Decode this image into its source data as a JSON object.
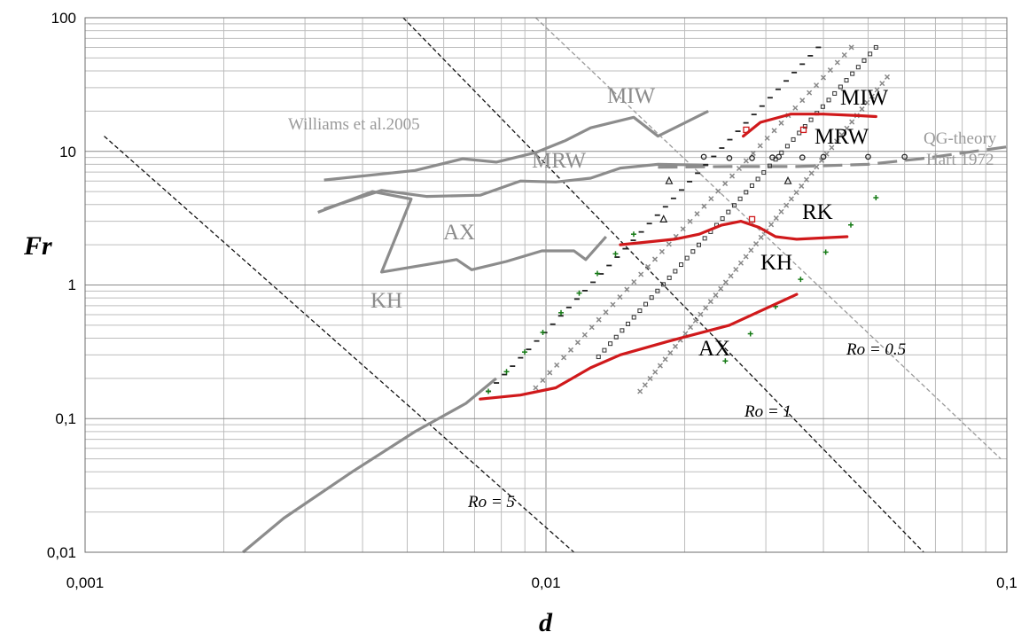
{
  "chart_data": {
    "type": "scatter",
    "xlabel": "d",
    "ylabel": "Fr",
    "xscale": "log",
    "yscale": "log",
    "xlim": [
      0.001,
      0.1
    ],
    "ylim": [
      0.01,
      100
    ],
    "grid": true,
    "x_ticks": [
      "0,001",
      "0,01",
      "0,1"
    ],
    "y_ticks": [
      "0,01",
      "0,1",
      "1",
      "10",
      "100"
    ],
    "rossby_lines": [
      {
        "label": "Ro = 5",
        "points": [
          [
            0.0011,
            13
          ],
          [
            0.0115,
            0.01
          ]
        ]
      },
      {
        "label": "Ro = 1",
        "points": [
          [
            0.0049,
            100
          ],
          [
            0.066,
            0.01
          ]
        ]
      },
      {
        "label": "Ro = 0.5",
        "points": [
          [
            0.0095,
            100
          ],
          [
            0.097,
            0.05
          ]
        ]
      }
    ],
    "williams_boundaries": [
      {
        "points": [
          [
            0.0033,
            6.1
          ],
          [
            0.0052,
            7.2
          ],
          [
            0.0066,
            8.8
          ],
          [
            0.0078,
            8.3
          ],
          [
            0.0095,
            9.8
          ],
          [
            0.011,
            12
          ],
          [
            0.0125,
            15
          ],
          [
            0.0155,
            18
          ],
          [
            0.0175,
            13
          ],
          [
            0.0225,
            20
          ]
        ]
      },
      {
        "points": [
          [
            0.0033,
            3.7
          ],
          [
            0.0044,
            5.1
          ],
          [
            0.0055,
            4.6
          ],
          [
            0.0072,
            4.7
          ],
          [
            0.0088,
            6.0
          ],
          [
            0.0105,
            5.9
          ],
          [
            0.0125,
            6.3
          ],
          [
            0.0145,
            7.5
          ],
          [
            0.0175,
            8.0
          ],
          [
            0.0225,
            7.9
          ]
        ]
      },
      {
        "points": [
          [
            0.0032,
            3.5
          ],
          [
            0.0042,
            5.0
          ],
          [
            0.0051,
            4.4
          ],
          [
            0.0044,
            1.25
          ],
          [
            0.0064,
            1.55
          ],
          [
            0.0069,
            1.3
          ],
          [
            0.0082,
            1.5
          ],
          [
            0.0098,
            1.8
          ],
          [
            0.0115,
            1.8
          ],
          [
            0.0122,
            1.55
          ],
          [
            0.0135,
            2.3
          ]
        ]
      },
      {
        "points": [
          [
            0.0022,
            0.01
          ],
          [
            0.0027,
            0.018
          ],
          [
            0.0038,
            0.04
          ],
          [
            0.0052,
            0.08
          ],
          [
            0.0067,
            0.13
          ],
          [
            0.0078,
            0.2
          ]
        ]
      }
    ],
    "qg_theory_line": {
      "points": [
        [
          0.0175,
          7.6
        ],
        [
          0.025,
          7.7
        ],
        [
          0.035,
          7.7
        ],
        [
          0.05,
          8.0
        ],
        [
          0.065,
          8.8
        ],
        [
          0.1,
          10.8
        ]
      ]
    },
    "present_boundaries": [
      {
        "points": [
          [
            0.0268,
            13
          ],
          [
            0.0292,
            16.5
          ],
          [
            0.034,
            19
          ],
          [
            0.04,
            19
          ],
          [
            0.048,
            18.5
          ],
          [
            0.052,
            18.2
          ]
        ]
      },
      {
        "points": [
          [
            0.0145,
            2.0
          ],
          [
            0.019,
            2.2
          ],
          [
            0.0215,
            2.4
          ],
          [
            0.024,
            2.8
          ],
          [
            0.0265,
            3.0
          ],
          [
            0.029,
            2.7
          ],
          [
            0.0315,
            2.3
          ],
          [
            0.035,
            2.2
          ],
          [
            0.045,
            2.3
          ]
        ]
      },
      {
        "points": [
          [
            0.0072,
            0.14
          ],
          [
            0.0088,
            0.15
          ],
          [
            0.0105,
            0.17
          ],
          [
            0.0125,
            0.24
          ],
          [
            0.0145,
            0.3
          ],
          [
            0.0185,
            0.38
          ],
          [
            0.025,
            0.5
          ],
          [
            0.035,
            0.85
          ]
        ]
      }
    ],
    "experimental_series": [
      {
        "marker": "dash",
        "x0": 0.0075,
        "y0": 0.16,
        "x1": 0.039,
        "y1": 60,
        "n": 42
      },
      {
        "marker": "x",
        "x0": 0.0095,
        "y0": 0.17,
        "x1": 0.046,
        "y1": 60,
        "n": 46
      },
      {
        "marker": "diamond",
        "x0": 0.013,
        "y0": 0.29,
        "x1": 0.052,
        "y1": 60,
        "n": 48
      },
      {
        "marker": "x",
        "x0": 0.016,
        "y0": 0.16,
        "x1": 0.055,
        "y1": 36,
        "n": 50
      },
      {
        "marker": "plus",
        "x0": 0.0075,
        "y0": 0.16,
        "x1": 0.0155,
        "y1": 2.4,
        "n": 9
      },
      {
        "marker": "plus",
        "x0": 0.0245,
        "y0": 0.27,
        "x1": 0.052,
        "y1": 4.5,
        "n": 7
      }
    ],
    "circle_points": [
      [
        0.022,
        9.1
      ],
      [
        0.025,
        8.9
      ],
      [
        0.028,
        8.9
      ],
      [
        0.031,
        9.0
      ],
      [
        0.032,
        9.1
      ],
      [
        0.036,
        9.0
      ],
      [
        0.04,
        9.1
      ],
      [
        0.05,
        9.1
      ],
      [
        0.06,
        9.1
      ]
    ],
    "triangle_points": [
      [
        0.0185,
        6.0
      ],
      [
        0.0335,
        6.0
      ],
      [
        0.018,
        3.1
      ]
    ],
    "square_points": [
      [
        0.0272,
        14.5
      ],
      [
        0.0362,
        14.5
      ],
      [
        0.028,
        3.1
      ]
    ]
  },
  "labels": {
    "miw_old": "MIW",
    "mrw_old": "MRW",
    "ax_old": "AX",
    "kh_old": "KH",
    "williams": "Williams et al.2005",
    "miw_new": "MIW",
    "mrw_new": "MRW",
    "rk_new": "RK",
    "kh_new": "KH",
    "ax_new": "AX",
    "qg1": "QG-theory",
    "qg2": "Hart 1972",
    "ro5": "Ro = 5",
    "ro1": "Ro = 1",
    "ro05": "Ro = 0.5"
  },
  "colors": {
    "williams": "#8c8c8c",
    "present": "#d0191b",
    "grid": "#bdbdbd",
    "plus": "#157a15"
  }
}
